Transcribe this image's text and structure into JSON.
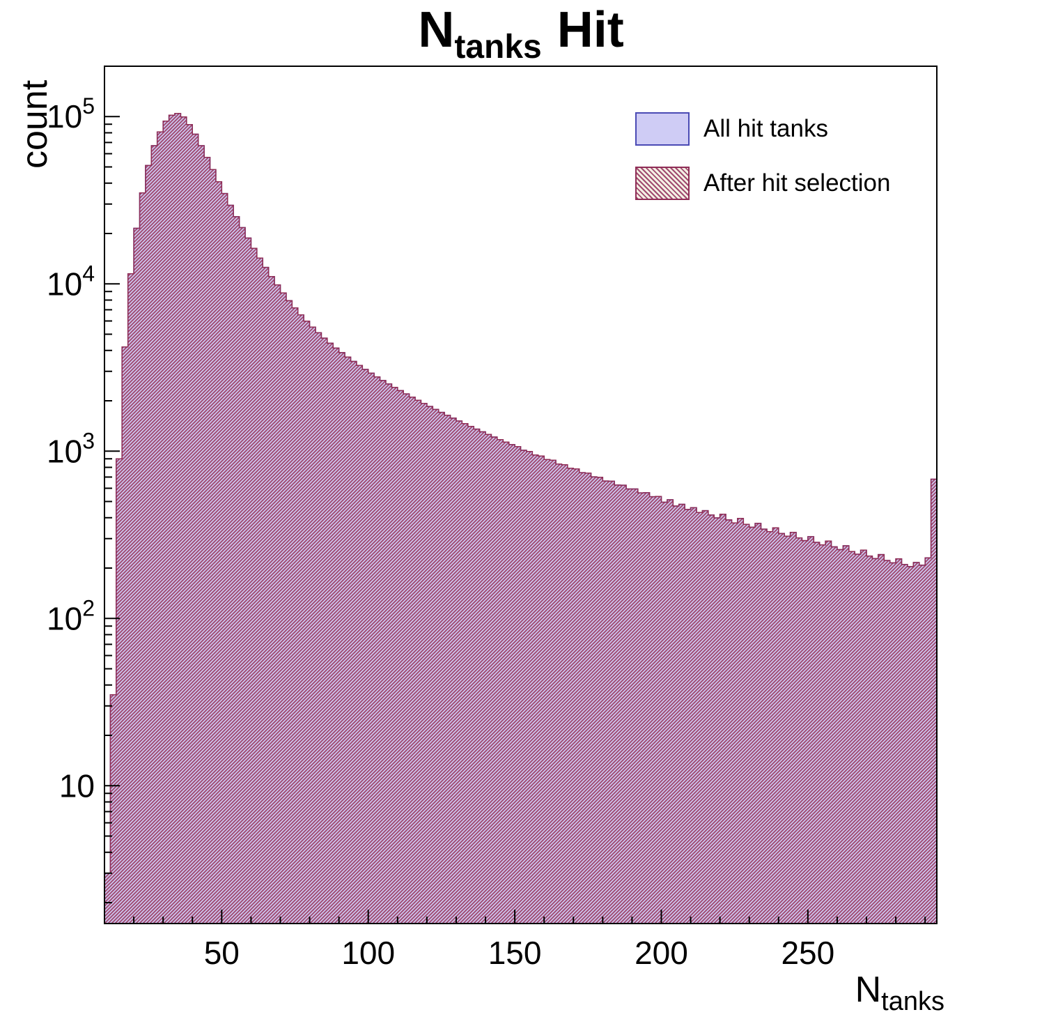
{
  "title": {
    "prefix": "N",
    "subscript": "tanks",
    "suffix": "Hit"
  },
  "axes": {
    "y_title": "count",
    "x_title_prefix": "N",
    "x_title_subscript": "tanks"
  },
  "legend": {
    "items": [
      {
        "label": "All hit tanks",
        "style": "solid"
      },
      {
        "label": "After hit selection",
        "style": "hatched"
      }
    ]
  },
  "colors": {
    "all_fill": "#cfccf5",
    "all_edge": "#4a4ab4",
    "sel_hatch": "#a04a70",
    "sel_edge": "#8f2d56",
    "sel_swatch_bg": "#f4f0e4",
    "frame": "#000000"
  },
  "chart_data": {
    "type": "bar",
    "title": "N_tanks Hit",
    "xlabel": "N_tanks",
    "ylabel": "count",
    "yscale": "log",
    "grid": false,
    "legend_position": "upper right",
    "xlim": [
      10,
      294
    ],
    "ylim": [
      1.5,
      200000
    ],
    "bin_start": 10,
    "bin_width": 2,
    "x_major_ticks": [
      50,
      100,
      150,
      200,
      250
    ],
    "x_minor_step": 10,
    "y_major_ticks": [
      10,
      100,
      1000,
      10000,
      100000
    ],
    "series": [
      {
        "name": "All hit tanks",
        "values": [
          3,
          35,
          900,
          4200,
          11500,
          21500,
          35000,
          51000,
          67000,
          81000,
          94000,
          102000,
          104500,
          99500,
          89500,
          78500,
          67000,
          57000,
          48200,
          40800,
          34700,
          29500,
          25200,
          21700,
          18800,
          16300,
          14250,
          12550,
          11050,
          9850,
          8820,
          7930,
          7180,
          6530,
          5980,
          5520,
          5100,
          4740,
          4420,
          4130,
          3880,
          3650,
          3440,
          3255,
          3080,
          2925,
          2780,
          2645,
          2520,
          2405,
          2300,
          2200,
          2105,
          2015,
          1930,
          1850,
          1775,
          1705,
          1640,
          1575,
          1515,
          1460,
          1405,
          1355,
          1305,
          1258,
          1215,
          1172,
          1132,
          1094,
          1065,
          1012,
          995,
          948,
          935,
          892,
          882,
          838,
          830,
          790,
          783,
          744,
          739,
          702,
          698,
          663,
          661,
          627,
          626,
          594,
          594,
          563,
          564,
          534,
          536,
          495,
          512,
          470,
          481,
          448,
          459,
          430,
          441,
          415,
          399,
          420,
          388,
          372,
          396,
          365,
          351,
          370,
          342,
          330,
          348,
          322,
          310,
          327,
          303,
          292,
          308,
          285,
          275,
          290,
          268,
          258,
          272,
          251,
          242,
          256,
          236,
          228,
          241,
          222,
          215,
          227,
          210,
          204,
          216,
          208,
          230,
          680
        ]
      },
      {
        "name": "After hit selection",
        "values": [
          3,
          35,
          900,
          4200,
          11500,
          21500,
          35000,
          51000,
          67000,
          81000,
          94000,
          102000,
          104500,
          99500,
          89500,
          78500,
          67000,
          57000,
          48200,
          40800,
          34700,
          29500,
          25200,
          21700,
          18800,
          16300,
          14250,
          12550,
          11050,
          9850,
          8820,
          7930,
          7180,
          6530,
          5980,
          5520,
          5100,
          4740,
          4420,
          4130,
          3880,
          3650,
          3440,
          3255,
          3080,
          2925,
          2780,
          2645,
          2520,
          2405,
          2300,
          2200,
          2105,
          2015,
          1930,
          1850,
          1775,
          1705,
          1640,
          1575,
          1515,
          1460,
          1405,
          1355,
          1305,
          1258,
          1215,
          1172,
          1132,
          1094,
          1065,
          1012,
          995,
          948,
          935,
          892,
          882,
          838,
          830,
          790,
          783,
          744,
          739,
          702,
          698,
          663,
          661,
          627,
          626,
          594,
          594,
          563,
          564,
          534,
          536,
          495,
          512,
          470,
          481,
          448,
          459,
          430,
          441,
          415,
          399,
          420,
          388,
          372,
          396,
          365,
          351,
          370,
          342,
          330,
          348,
          322,
          310,
          327,
          303,
          292,
          308,
          285,
          275,
          290,
          268,
          258,
          272,
          251,
          242,
          256,
          236,
          228,
          241,
          222,
          215,
          227,
          210,
          204,
          216,
          208,
          230,
          680
        ]
      }
    ]
  }
}
